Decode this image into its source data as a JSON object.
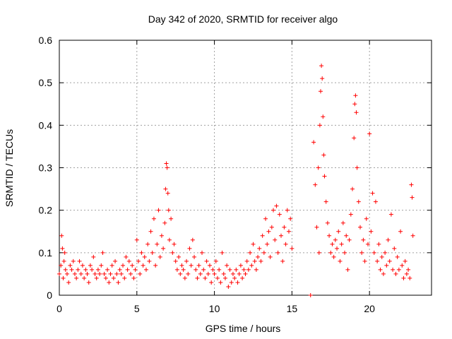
{
  "chart_data": {
    "type": "scatter",
    "title": "Day 342 of 2020, SRMTID for receiver algo",
    "xlabel": "GPS time / hours",
    "ylabel": "SRMTID / TECUs",
    "xlim": [
      0,
      24
    ],
    "ylim": [
      0,
      0.6
    ],
    "xticks": [
      0,
      5,
      10,
      15,
      20
    ],
    "xtick_labels": [
      "0",
      "5",
      "10",
      "15",
      "20"
    ],
    "yticks": [
      0,
      0.1,
      0.2,
      0.3,
      0.4,
      0.5,
      0.6
    ],
    "ytick_labels": [
      "0",
      "0.1",
      "0.2",
      "0.3",
      "0.4",
      "0.5",
      "0.6"
    ],
    "grid": true,
    "marker": "plus",
    "color": "#ff0000",
    "series": [
      {
        "name": "SRMTID",
        "points": [
          [
            0.0,
            0.05
          ],
          [
            0.1,
            0.07
          ],
          [
            0.15,
            0.14
          ],
          [
            0.2,
            0.11
          ],
          [
            0.25,
            0.04
          ],
          [
            0.3,
            0.08
          ],
          [
            0.35,
            0.1
          ],
          [
            0.4,
            0.06
          ],
          [
            0.5,
            0.05
          ],
          [
            0.6,
            0.03
          ],
          [
            0.7,
            0.07
          ],
          [
            0.8,
            0.06
          ],
          [
            0.9,
            0.08
          ],
          [
            1.0,
            0.05
          ],
          [
            1.1,
            0.04
          ],
          [
            1.2,
            0.06
          ],
          [
            1.3,
            0.08
          ],
          [
            1.4,
            0.05
          ],
          [
            1.5,
            0.07
          ],
          [
            1.6,
            0.04
          ],
          [
            1.7,
            0.06
          ],
          [
            1.8,
            0.05
          ],
          [
            1.9,
            0.03
          ],
          [
            2.0,
            0.07
          ],
          [
            2.1,
            0.06
          ],
          [
            2.2,
            0.09
          ],
          [
            2.3,
            0.05
          ],
          [
            2.4,
            0.04
          ],
          [
            2.5,
            0.06
          ],
          [
            2.6,
            0.05
          ],
          [
            2.7,
            0.07
          ],
          [
            2.8,
            0.1
          ],
          [
            2.9,
            0.05
          ],
          [
            3.0,
            0.04
          ],
          [
            3.1,
            0.06
          ],
          [
            3.2,
            0.03
          ],
          [
            3.3,
            0.05
          ],
          [
            3.4,
            0.07
          ],
          [
            3.5,
            0.04
          ],
          [
            3.6,
            0.08
          ],
          [
            3.7,
            0.05
          ],
          [
            3.8,
            0.03
          ],
          [
            3.9,
            0.06
          ],
          [
            4.0,
            0.05
          ],
          [
            4.1,
            0.07
          ],
          [
            4.2,
            0.04
          ],
          [
            4.3,
            0.09
          ],
          [
            4.4,
            0.06
          ],
          [
            4.5,
            0.08
          ],
          [
            4.6,
            0.05
          ],
          [
            4.7,
            0.07
          ],
          [
            4.8,
            0.04
          ],
          [
            4.9,
            0.06
          ],
          [
            5.0,
            0.13
          ],
          [
            5.1,
            0.08
          ],
          [
            5.2,
            0.05
          ],
          [
            5.3,
            0.1
          ],
          [
            5.4,
            0.07
          ],
          [
            5.5,
            0.09
          ],
          [
            5.6,
            0.06
          ],
          [
            5.7,
            0.12
          ],
          [
            5.8,
            0.08
          ],
          [
            5.9,
            0.15
          ],
          [
            6.0,
            0.1
          ],
          [
            6.1,
            0.18
          ],
          [
            6.2,
            0.07
          ],
          [
            6.3,
            0.12
          ],
          [
            6.4,
            0.2
          ],
          [
            6.5,
            0.09
          ],
          [
            6.6,
            0.14
          ],
          [
            6.7,
            0.11
          ],
          [
            6.8,
            0.17
          ],
          [
            6.85,
            0.25
          ],
          [
            6.9,
            0.31
          ],
          [
            6.95,
            0.3
          ],
          [
            7.0,
            0.24
          ],
          [
            7.05,
            0.2
          ],
          [
            7.1,
            0.13
          ],
          [
            7.2,
            0.18
          ],
          [
            7.3,
            0.1
          ],
          [
            7.4,
            0.12
          ],
          [
            7.5,
            0.08
          ],
          [
            7.6,
            0.06
          ],
          [
            7.7,
            0.09
          ],
          [
            7.8,
            0.05
          ],
          [
            7.9,
            0.07
          ],
          [
            8.0,
            0.06
          ],
          [
            8.1,
            0.04
          ],
          [
            8.2,
            0.08
          ],
          [
            8.3,
            0.05
          ],
          [
            8.4,
            0.11
          ],
          [
            8.5,
            0.07
          ],
          [
            8.6,
            0.13
          ],
          [
            8.7,
            0.09
          ],
          [
            8.8,
            0.06
          ],
          [
            8.9,
            0.04
          ],
          [
            9.0,
            0.07
          ],
          [
            9.1,
            0.05
          ],
          [
            9.2,
            0.1
          ],
          [
            9.3,
            0.06
          ],
          [
            9.4,
            0.04
          ],
          [
            9.5,
            0.08
          ],
          [
            9.6,
            0.05
          ],
          [
            9.7,
            0.07
          ],
          [
            9.8,
            0.03
          ],
          [
            9.9,
            0.06
          ],
          [
            10.0,
            0.05
          ],
          [
            10.1,
            0.08
          ],
          [
            10.2,
            0.04
          ],
          [
            10.3,
            0.06
          ],
          [
            10.4,
            0.03
          ],
          [
            10.5,
            0.1
          ],
          [
            10.6,
            0.05
          ],
          [
            10.7,
            0.04
          ],
          [
            10.8,
            0.07
          ],
          [
            10.9,
            0.02
          ],
          [
            11.0,
            0.06
          ],
          [
            11.1,
            0.03
          ],
          [
            11.2,
            0.05
          ],
          [
            11.3,
            0.04
          ],
          [
            11.4,
            0.06
          ],
          [
            11.5,
            0.03
          ],
          [
            11.6,
            0.05
          ],
          [
            11.7,
            0.07
          ],
          [
            11.8,
            0.04
          ],
          [
            11.9,
            0.06
          ],
          [
            12.0,
            0.05
          ],
          [
            12.1,
            0.08
          ],
          [
            12.2,
            0.06
          ],
          [
            12.3,
            0.1
          ],
          [
            12.4,
            0.07
          ],
          [
            12.5,
            0.12
          ],
          [
            12.6,
            0.08
          ],
          [
            12.7,
            0.06
          ],
          [
            12.8,
            0.09
          ],
          [
            12.9,
            0.11
          ],
          [
            13.0,
            0.08
          ],
          [
            13.1,
            0.14
          ],
          [
            13.2,
            0.1
          ],
          [
            13.3,
            0.18
          ],
          [
            13.4,
            0.12
          ],
          [
            13.5,
            0.15
          ],
          [
            13.6,
            0.09
          ],
          [
            13.7,
            0.16
          ],
          [
            13.8,
            0.2
          ],
          [
            13.9,
            0.13
          ],
          [
            14.0,
            0.21
          ],
          [
            14.1,
            0.1
          ],
          [
            14.2,
            0.19
          ],
          [
            14.3,
            0.14
          ],
          [
            14.4,
            0.08
          ],
          [
            14.5,
            0.16
          ],
          [
            14.6,
            0.12
          ],
          [
            14.7,
            0.2
          ],
          [
            14.8,
            0.15
          ],
          [
            14.9,
            0.18
          ],
          [
            15.0,
            0.11
          ],
          [
            16.2,
            0.0
          ],
          [
            16.4,
            0.36
          ],
          [
            16.5,
            0.26
          ],
          [
            16.6,
            0.16
          ],
          [
            16.7,
            0.3
          ],
          [
            16.75,
            0.1
          ],
          [
            16.8,
            0.4
          ],
          [
            16.85,
            0.48
          ],
          [
            16.9,
            0.54
          ],
          [
            16.95,
            0.51
          ],
          [
            17.0,
            0.42
          ],
          [
            17.05,
            0.33
          ],
          [
            17.1,
            0.28
          ],
          [
            17.2,
            0.22
          ],
          [
            17.3,
            0.17
          ],
          [
            17.4,
            0.14
          ],
          [
            17.5,
            0.1
          ],
          [
            17.6,
            0.12
          ],
          [
            17.7,
            0.09
          ],
          [
            17.8,
            0.13
          ],
          [
            17.9,
            0.11
          ],
          [
            18.0,
            0.15
          ],
          [
            18.1,
            0.08
          ],
          [
            18.2,
            0.12
          ],
          [
            18.3,
            0.17
          ],
          [
            18.4,
            0.1
          ],
          [
            18.5,
            0.14
          ],
          [
            18.6,
            0.06
          ],
          [
            18.7,
            0.13
          ],
          [
            18.8,
            0.19
          ],
          [
            18.9,
            0.25
          ],
          [
            19.0,
            0.37
          ],
          [
            19.05,
            0.45
          ],
          [
            19.1,
            0.47
          ],
          [
            19.15,
            0.43
          ],
          [
            19.2,
            0.3
          ],
          [
            19.3,
            0.22
          ],
          [
            19.4,
            0.16
          ],
          [
            19.5,
            0.1
          ],
          [
            19.6,
            0.13
          ],
          [
            19.7,
            0.08
          ],
          [
            19.8,
            0.18
          ],
          [
            19.9,
            0.12
          ],
          [
            20.0,
            0.38
          ],
          [
            20.1,
            0.15
          ],
          [
            20.2,
            0.24
          ],
          [
            20.3,
            0.1
          ],
          [
            20.4,
            0.22
          ],
          [
            20.5,
            0.08
          ],
          [
            20.6,
            0.12
          ],
          [
            20.7,
            0.06
          ],
          [
            20.8,
            0.09
          ],
          [
            20.9,
            0.05
          ],
          [
            21.0,
            0.1
          ],
          [
            21.1,
            0.07
          ],
          [
            21.2,
            0.13
          ],
          [
            21.3,
            0.08
          ],
          [
            21.4,
            0.19
          ],
          [
            21.5,
            0.06
          ],
          [
            21.6,
            0.11
          ],
          [
            21.7,
            0.05
          ],
          [
            21.8,
            0.09
          ],
          [
            21.9,
            0.06
          ],
          [
            22.0,
            0.15
          ],
          [
            22.1,
            0.07
          ],
          [
            22.2,
            0.04
          ],
          [
            22.3,
            0.08
          ],
          [
            22.4,
            0.05
          ],
          [
            22.5,
            0.06
          ],
          [
            22.6,
            0.04
          ],
          [
            22.7,
            0.26
          ],
          [
            22.75,
            0.23
          ],
          [
            22.8,
            0.14
          ]
        ]
      }
    ]
  }
}
